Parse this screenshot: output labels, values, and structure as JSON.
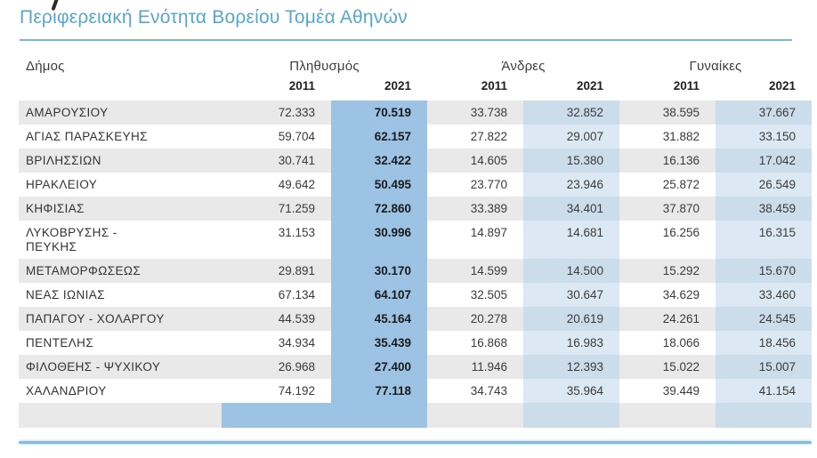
{
  "header": {
    "title": "Περιφερειακή Ενότητα Βορείου Τομέα Αθηνών"
  },
  "table": {
    "group_headers": {
      "dimos": "Δήμος",
      "population": "Πληθυσμός",
      "men": "Άνδρες",
      "women": "Γυναίκες"
    },
    "year_headers": [
      "2011",
      "2021",
      "2011",
      "2021",
      "2011",
      "2021"
    ],
    "rows": [
      {
        "name": "ΑΜΑΡΟΥΣΙΟΥ",
        "values": [
          "72.333",
          "70.519",
          "33.738",
          "32.852",
          "38.595",
          "37.667"
        ]
      },
      {
        "name": "ΑΓΙΑΣ ΠΑΡΑΣΚΕΥΗΣ",
        "values": [
          "59.704",
          "62.157",
          "27.822",
          "29.007",
          "31.882",
          "33.150"
        ]
      },
      {
        "name": "ΒΡΙΛΗΣΣΙΩΝ",
        "values": [
          "30.741",
          "32.422",
          "14.605",
          "15.380",
          "16.136",
          "17.042"
        ]
      },
      {
        "name": "ΗΡΑΚΛΕΙΟΥ",
        "values": [
          "49.642",
          "50.495",
          "23.770",
          "23.946",
          "25.872",
          "26.549"
        ]
      },
      {
        "name": "ΚΗΦΙΣΙΑΣ",
        "values": [
          "71.259",
          "72.860",
          "33.389",
          "34.401",
          "37.870",
          "38.459"
        ]
      },
      {
        "name": "ΛΥΚΟΒΡΥΣΗΣ -\nΠΕΥΚΗΣ",
        "values": [
          "31.153",
          "30.996",
          "14.897",
          "14.681",
          "16.256",
          "16.315"
        ]
      },
      {
        "name": "ΜΕΤΑΜΟΡΦΩΣΕΩΣ",
        "values": [
          "29.891",
          "30.170",
          "14.599",
          "14.500",
          "15.292",
          "15.670"
        ]
      },
      {
        "name": "ΝΕΑΣ ΙΩΝΙΑΣ",
        "values": [
          "67.134",
          "64.107",
          "32.505",
          "30.647",
          "34.629",
          "33.460"
        ]
      },
      {
        "name": "ΠΑΠΑΓΟΥ - ΧΟΛΑΡΓΟΥ",
        "values": [
          "44.539",
          "45.164",
          "20.278",
          "20.619",
          "24.261",
          "24.545"
        ]
      },
      {
        "name": "ΠΕΝΤΕΛΗΣ",
        "values": [
          "34.934",
          "35.439",
          "16.868",
          "16.983",
          "18.066",
          "18.456"
        ]
      },
      {
        "name": "ΦΙΛΟΘΕΗΣ - ΨΥΧΙΚΟΥ",
        "values": [
          "26.968",
          "27.400",
          "11.946",
          "12.393",
          "15.022",
          "15.007"
        ]
      },
      {
        "name": "ΧΑΛΑΝΔΡΙΟΥ",
        "values": [
          "74.192",
          "77.118",
          "34.743",
          "35.964",
          "39.449",
          "41.154"
        ]
      }
    ]
  },
  "colors": {
    "title_text": "#56a7cb",
    "title_rule": "#7db4d2",
    "bottom_rule": "#85bad8",
    "row_stripe": "#e9e9e9",
    "population_2021_highlight": "#9cc3e3",
    "year_2021_highlight_on_stripe": "#cbdcea",
    "year_2021_highlight_on_white": "#dce9f4"
  }
}
